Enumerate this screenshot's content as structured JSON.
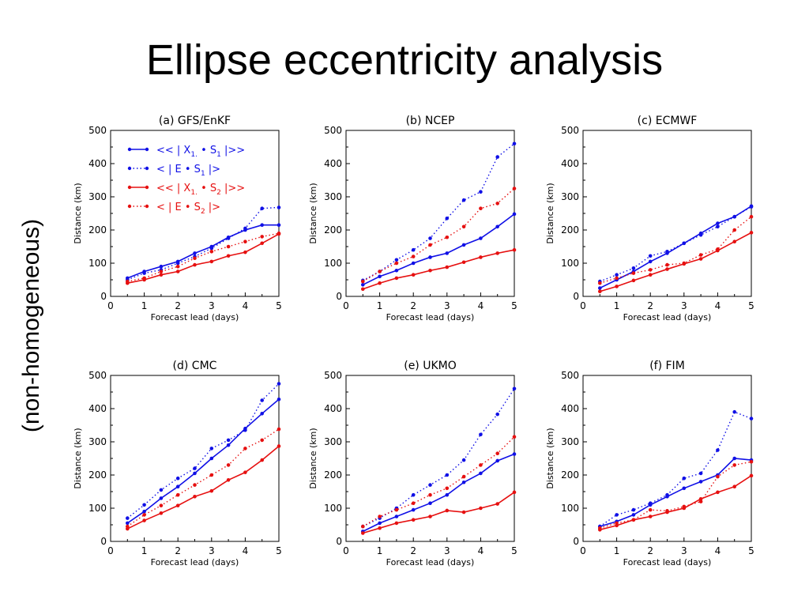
{
  "slide": {
    "title": "Ellipse eccentricity analysis",
    "side_label": "(non-homogeneous)"
  },
  "colors": {
    "blue": "#1010e6",
    "red": "#e61010",
    "axis": "#000000"
  },
  "legend": [
    {
      "label": "<< | X",
      "sub": "1.",
      "mid": " • S",
      "sub2": "1",
      "end": " |>>",
      "color": "blue",
      "style": "solid"
    },
    {
      "label": "< | E • S",
      "sub": "1",
      "mid": "",
      "sub2": "",
      "end": " |>",
      "color": "blue",
      "style": "dotted"
    },
    {
      "label": "<< | X",
      "sub": "1.",
      "mid": " • S",
      "sub2": "2",
      "end": " |>>",
      "color": "red",
      "style": "solid"
    },
    {
      "label": "< | E • S",
      "sub": "2",
      "mid": "",
      "sub2": "",
      "end": " |>",
      "color": "red",
      "style": "dotted"
    }
  ],
  "chart_data": [
    {
      "type": "line",
      "title": "(a) GFS/EnKF",
      "xlabel": "Forecast lead (days)",
      "ylabel": "Distance (km)",
      "xlim": [
        0,
        5
      ],
      "ylim": [
        0,
        500
      ],
      "xticks": [
        0,
        1,
        2,
        3,
        4,
        5
      ],
      "yticks": [
        0,
        100,
        200,
        300,
        400,
        500
      ],
      "x": [
        0.5,
        1,
        1.5,
        2,
        2.5,
        3,
        3.5,
        4,
        4.5,
        5
      ],
      "series": [
        {
          "color": "blue",
          "style": "solid",
          "values": [
            55,
            75,
            90,
            105,
            130,
            150,
            178,
            200,
            215,
            215
          ]
        },
        {
          "color": "blue",
          "style": "dotted",
          "values": [
            50,
            70,
            80,
            100,
            120,
            145,
            175,
            205,
            265,
            268
          ]
        },
        {
          "color": "red",
          "style": "solid",
          "values": [
            40,
            50,
            65,
            75,
            95,
            105,
            122,
            133,
            160,
            188
          ]
        },
        {
          "color": "red",
          "style": "dotted",
          "values": [
            45,
            55,
            75,
            90,
            115,
            135,
            150,
            165,
            180,
            190
          ]
        }
      ]
    },
    {
      "type": "line",
      "title": "(b) NCEP",
      "xlabel": "Forecast lead (days)",
      "ylabel": "Distance (km)",
      "xlim": [
        0,
        5
      ],
      "ylim": [
        0,
        500
      ],
      "xticks": [
        0,
        1,
        2,
        3,
        4,
        5
      ],
      "yticks": [
        0,
        100,
        200,
        300,
        400,
        500
      ],
      "x": [
        0.5,
        1,
        1.5,
        2,
        2.5,
        3,
        3.5,
        4,
        4.5,
        5
      ],
      "series": [
        {
          "color": "blue",
          "style": "solid",
          "values": [
            35,
            60,
            78,
            100,
            118,
            130,
            155,
            175,
            210,
            248
          ]
        },
        {
          "color": "blue",
          "style": "dotted",
          "values": [
            48,
            75,
            110,
            140,
            175,
            235,
            290,
            315,
            420,
            460
          ]
        },
        {
          "color": "red",
          "style": "solid",
          "values": [
            22,
            40,
            55,
            65,
            78,
            88,
            103,
            118,
            130,
            140
          ]
        },
        {
          "color": "red",
          "style": "dotted",
          "values": [
            45,
            75,
            100,
            120,
            155,
            178,
            210,
            265,
            280,
            325
          ]
        }
      ]
    },
    {
      "type": "line",
      "title": "(c) ECMWF",
      "xlabel": "Forecast lead (days)",
      "ylabel": "Distance (km)",
      "xlim": [
        0,
        5
      ],
      "ylim": [
        0,
        500
      ],
      "xticks": [
        0,
        1,
        2,
        3,
        4,
        5
      ],
      "yticks": [
        0,
        100,
        200,
        300,
        400,
        500
      ],
      "x": [
        0.5,
        1,
        1.5,
        2,
        2.5,
        3,
        3.5,
        4,
        4.5,
        5
      ],
      "series": [
        {
          "color": "blue",
          "style": "solid",
          "values": [
            25,
            50,
            75,
            105,
            130,
            160,
            190,
            220,
            240,
            272
          ]
        },
        {
          "color": "blue",
          "style": "dotted",
          "values": [
            45,
            65,
            85,
            122,
            135,
            160,
            185,
            210,
            240,
            270
          ]
        },
        {
          "color": "red",
          "style": "solid",
          "values": [
            15,
            30,
            48,
            65,
            82,
            98,
            113,
            138,
            165,
            192
          ]
        },
        {
          "color": "red",
          "style": "dotted",
          "values": [
            40,
            55,
            70,
            80,
            95,
            100,
            125,
            142,
            200,
            240
          ]
        }
      ]
    },
    {
      "type": "line",
      "title": "(d) CMC",
      "xlabel": "Forecast lead (days)",
      "ylabel": "Distance (km)",
      "xlim": [
        0,
        5
      ],
      "ylim": [
        0,
        500
      ],
      "xticks": [
        0,
        1,
        2,
        3,
        4,
        5
      ],
      "yticks": [
        0,
        100,
        200,
        300,
        400,
        500
      ],
      "x": [
        0.5,
        1,
        1.5,
        2,
        2.5,
        3,
        3.5,
        4,
        4.5,
        5
      ],
      "series": [
        {
          "color": "blue",
          "style": "solid",
          "values": [
            55,
            90,
            130,
            165,
            205,
            250,
            290,
            340,
            385,
            428
          ]
        },
        {
          "color": "blue",
          "style": "dotted",
          "values": [
            70,
            110,
            155,
            190,
            220,
            280,
            305,
            335,
            425,
            475
          ]
        },
        {
          "color": "red",
          "style": "solid",
          "values": [
            38,
            63,
            85,
            108,
            135,
            152,
            185,
            208,
            245,
            287
          ]
        },
        {
          "color": "red",
          "style": "dotted",
          "values": [
            45,
            80,
            108,
            140,
            170,
            200,
            230,
            280,
            305,
            338
          ]
        }
      ]
    },
    {
      "type": "line",
      "title": "(e) UKMO",
      "xlabel": "Forecast lead (days)",
      "ylabel": "Distance (km)",
      "xlim": [
        0,
        5
      ],
      "ylim": [
        0,
        500
      ],
      "xticks": [
        0,
        1,
        2,
        3,
        4,
        5
      ],
      "yticks": [
        0,
        100,
        200,
        300,
        400,
        500
      ],
      "x": [
        0.5,
        1,
        1.5,
        2,
        2.5,
        3,
        3.5,
        4,
        4.5,
        5
      ],
      "series": [
        {
          "color": "blue",
          "style": "solid",
          "values": [
            30,
            55,
            75,
            95,
            115,
            140,
            178,
            205,
            243,
            263
          ]
        },
        {
          "color": "blue",
          "style": "dotted",
          "values": [
            45,
            70,
            100,
            140,
            170,
            200,
            245,
            322,
            383,
            460
          ]
        },
        {
          "color": "red",
          "style": "solid",
          "values": [
            25,
            40,
            55,
            65,
            75,
            93,
            88,
            100,
            113,
            148
          ]
        },
        {
          "color": "red",
          "style": "dotted",
          "values": [
            45,
            75,
            95,
            115,
            140,
            160,
            195,
            230,
            265,
            315
          ]
        }
      ]
    },
    {
      "type": "line",
      "title": "(f) FIM",
      "xlabel": "Forecast lead (days)",
      "ylabel": "Distance (km)",
      "xlim": [
        0,
        5
      ],
      "ylim": [
        0,
        500
      ],
      "xticks": [
        0,
        1,
        2,
        3,
        4,
        5
      ],
      "yticks": [
        0,
        100,
        200,
        300,
        400,
        500
      ],
      "x": [
        0.5,
        1,
        1.5,
        2,
        2.5,
        3,
        3.5,
        4,
        4.5,
        5
      ],
      "series": [
        {
          "color": "blue",
          "style": "solid",
          "values": [
            45,
            60,
            80,
            110,
            135,
            160,
            180,
            200,
            250,
            245
          ]
        },
        {
          "color": "blue",
          "style": "dotted",
          "values": [
            45,
            80,
            95,
            115,
            140,
            190,
            205,
            275,
            390,
            370
          ]
        },
        {
          "color": "red",
          "style": "solid",
          "values": [
            35,
            48,
            65,
            75,
            88,
            100,
            128,
            148,
            165,
            198
          ]
        },
        {
          "color": "red",
          "style": "dotted",
          "values": [
            40,
            55,
            65,
            95,
            92,
            105,
            120,
            195,
            230,
            240
          ]
        }
      ]
    }
  ]
}
